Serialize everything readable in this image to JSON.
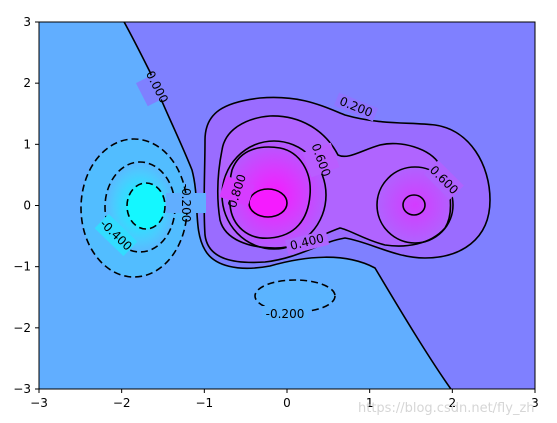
{
  "chart_data": {
    "type": "contour",
    "title": "",
    "xlabel": "",
    "ylabel": "",
    "xlim": [
      -3,
      3
    ],
    "ylim": [
      -3,
      3
    ],
    "x_ticks": [
      -3,
      -2,
      -1,
      0,
      1,
      2,
      3
    ],
    "y_ticks": [
      -3,
      -2,
      -1,
      0,
      1,
      2,
      3
    ],
    "x_tick_labels": [
      "−3",
      "−2",
      "−1",
      "0",
      "1",
      "2",
      "3"
    ],
    "y_tick_labels": [
      "−3",
      "−2",
      "−1",
      "0",
      "1",
      "2",
      "3"
    ],
    "grid": false,
    "colormap": "cool",
    "contour_levels": [
      -0.6,
      -0.4,
      -0.2,
      0.0,
      0.2,
      0.4,
      0.6,
      0.8
    ],
    "contour_label_texts": [
      "0.000",
      "0.200",
      "0.600",
      "0.800",
      "0.600",
      "0.400",
      "-0.200",
      "-0.400",
      "-0.200"
    ],
    "region_colors": {
      "negative_background": "#61aeff",
      "positive_background": "#7f80ff",
      "cyan_core": "#1ff0ff",
      "magenta_core": "#f51bff",
      "line": "#000000"
    },
    "features": [
      {
        "kind": "minimum",
        "x": -1.7,
        "y": 0.0,
        "value": -0.55
      },
      {
        "kind": "maximum",
        "x": -0.2,
        "y": 0.0,
        "value": 0.85
      },
      {
        "kind": "maximum",
        "x": 1.55,
        "y": 0.0,
        "value": 0.65
      },
      {
        "kind": "minimum",
        "x": 0.45,
        "y": -1.55,
        "value": -0.25
      }
    ],
    "watermark": "https://blog.csdn.net/fly_zh"
  }
}
